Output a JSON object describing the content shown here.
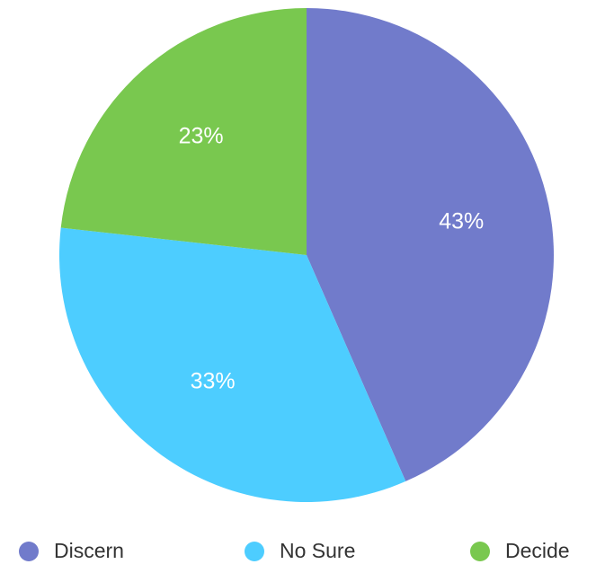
{
  "chart_data": {
    "type": "pie",
    "categories": [
      "Discern",
      "No Sure",
      "Decide"
    ],
    "values": [
      43,
      33,
      23
    ],
    "value_labels": [
      "43%",
      "33%",
      "23%"
    ],
    "colors": [
      "#717bcb",
      "#4dcdff",
      "#79c84f"
    ],
    "legend": "bottom"
  }
}
